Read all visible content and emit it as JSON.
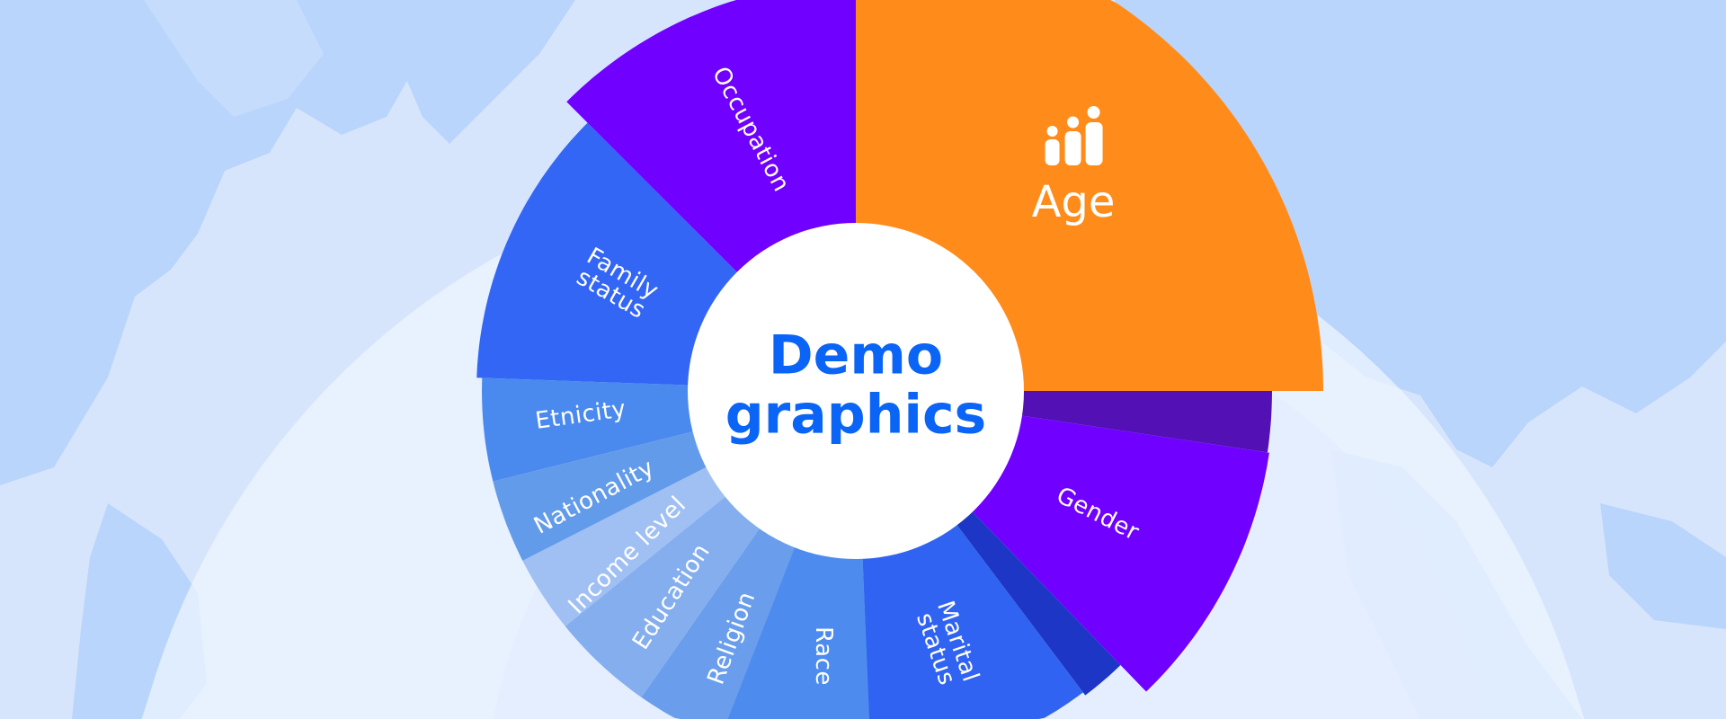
{
  "center": {
    "line1": "Demo",
    "line2": "graphics"
  },
  "segments": [
    {
      "label": "Age",
      "color": "#ff8c1a",
      "icon": "people-ascending-icon"
    },
    {
      "label": "",
      "color": "#5210b5"
    },
    {
      "label": "Gender",
      "color": "#7000ff"
    },
    {
      "label": "",
      "color": "#1e36c5"
    },
    {
      "label": "Marital status",
      "color": "#3163f2"
    },
    {
      "label": "Race",
      "color": "#4d8cee"
    },
    {
      "label": "Religion",
      "color": "#6a9eec"
    },
    {
      "label": "Education",
      "color": "#85aeee"
    },
    {
      "label": "Income level",
      "color": "#a0c0f3"
    },
    {
      "label": "Nationality",
      "color": "#639beb"
    },
    {
      "label": "Etnicity",
      "color": "#4a8aee"
    },
    {
      "label": "Family status",
      "color": "#3366f5"
    },
    {
      "label": "Occupation",
      "color": "#7000ff"
    }
  ],
  "colors": {
    "background": "#d7e5fc",
    "map": "#b9d5fc",
    "title": "#0a64f5"
  }
}
